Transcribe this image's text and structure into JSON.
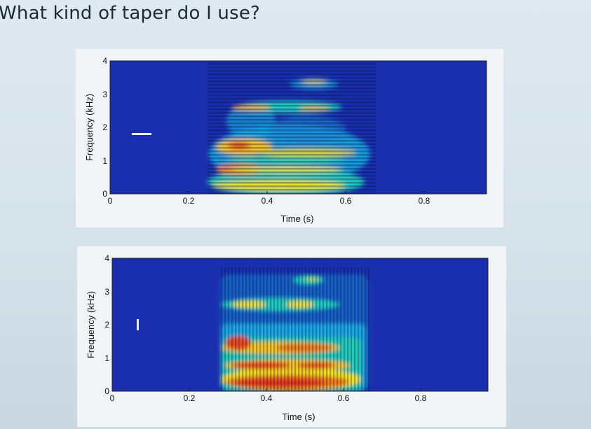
{
  "slide": {
    "title": "What kind of taper do I use?"
  },
  "spectrograms": [
    {
      "xlabel": "Time (s)",
      "ylabel": "Frequency (kHz)",
      "xticks": [
        "0",
        "0.2",
        "0.4",
        "0.6",
        "0.8"
      ],
      "yticks": [
        "0",
        "1",
        "2",
        "3",
        "4"
      ],
      "taper_marker": "horizontal-bar",
      "background_color": "#1a2fae"
    },
    {
      "xlabel": "Time (s)",
      "ylabel": "Frequency (kHz)",
      "xticks": [
        "0",
        "0.2",
        "0.4",
        "0.6",
        "0.8"
      ],
      "yticks": [
        "0",
        "1",
        "2",
        "3",
        "4"
      ],
      "taper_marker": "vertical-bar",
      "background_color": "#1a2fae"
    }
  ]
}
